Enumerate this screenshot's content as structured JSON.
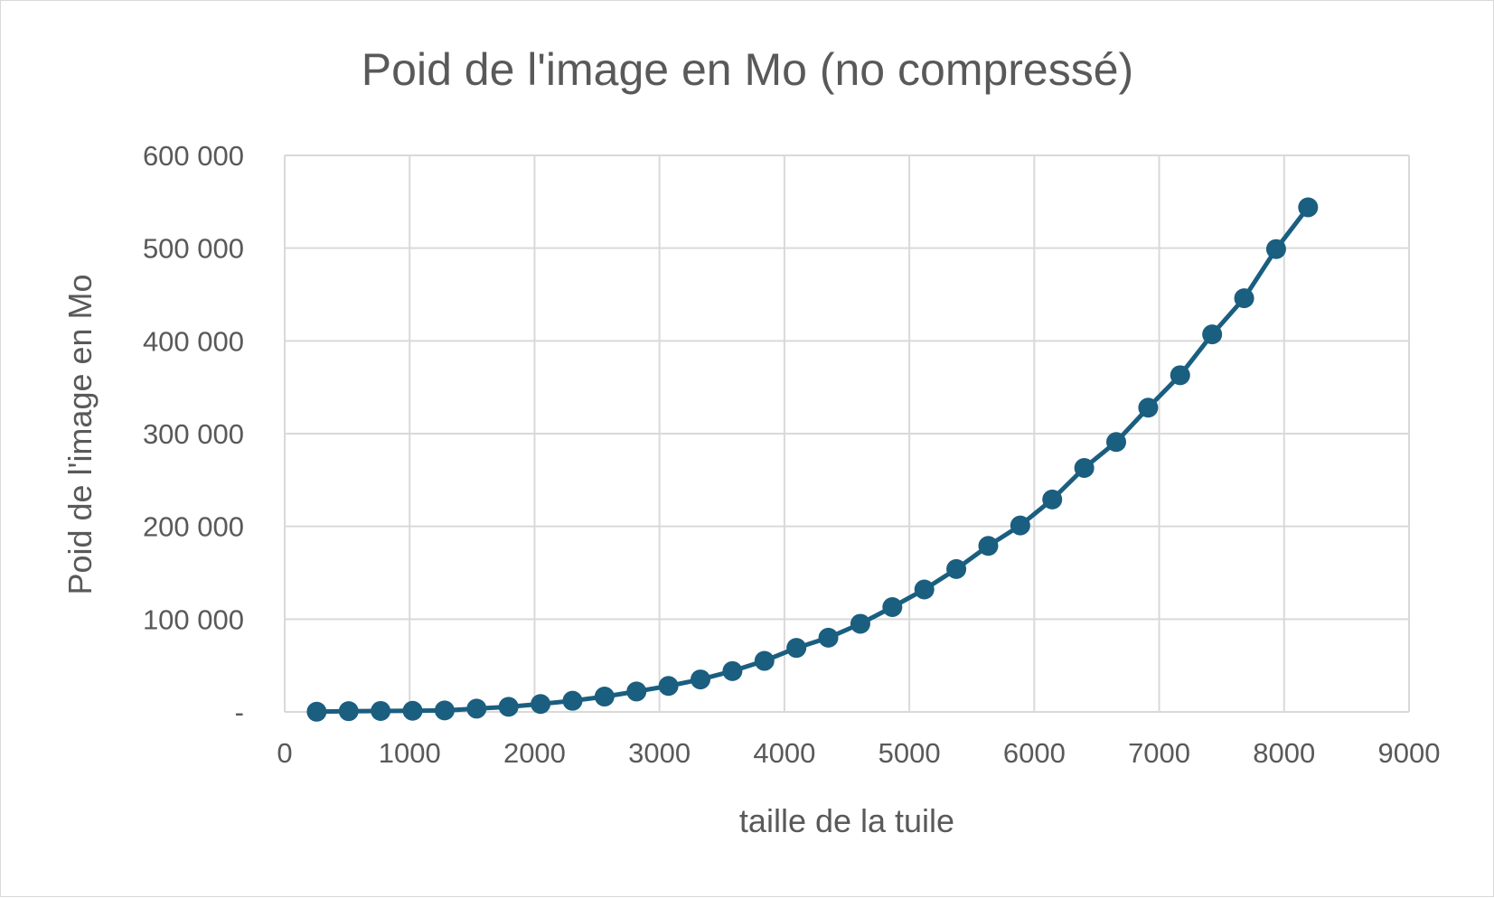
{
  "chart_data": {
    "type": "line",
    "title": "Poid de l'image en Mo (no compressé)",
    "xlabel": "taille de la tuile",
    "ylabel": "Poid de l'image en Mo",
    "xlim": [
      0,
      9000
    ],
    "ylim": [
      0,
      600000
    ],
    "x_ticks": [
      0,
      1000,
      2000,
      3000,
      4000,
      5000,
      6000,
      7000,
      8000,
      9000
    ],
    "x_tick_labels": [
      "0",
      "1000",
      "2000",
      "3000",
      "4000",
      "5000",
      "6000",
      "7000",
      "8000",
      "9000"
    ],
    "y_ticks": [
      0,
      100000,
      200000,
      300000,
      400000,
      500000,
      600000
    ],
    "y_tick_labels": [
      "-",
      "100 000",
      "200 000",
      "300 000",
      "400 000",
      "500 000",
      "600 000"
    ],
    "grid": true,
    "legend": "none",
    "color": "#1a5e80",
    "series": [
      {
        "x": [
          256,
          512,
          768,
          1024,
          1280,
          1536,
          1792,
          2048,
          2304,
          2560,
          2816,
          3072,
          3328,
          3584,
          3840,
          4096,
          4352,
          4608,
          4864,
          5120,
          5376,
          5632,
          5888,
          6144,
          6400,
          6656,
          6912,
          7168,
          7424,
          7680,
          7936,
          8192
        ],
        "values": [
          200,
          800,
          1000,
          1200,
          1600,
          3500,
          5500,
          8500,
          12000,
          16500,
          22000,
          28000,
          35000,
          44000,
          55000,
          69000,
          80000,
          95000,
          113000,
          132000,
          154000,
          179000,
          201000,
          229000,
          263000,
          291000,
          328000,
          363000,
          407000,
          446000,
          499000,
          544000
        ]
      }
    ]
  }
}
